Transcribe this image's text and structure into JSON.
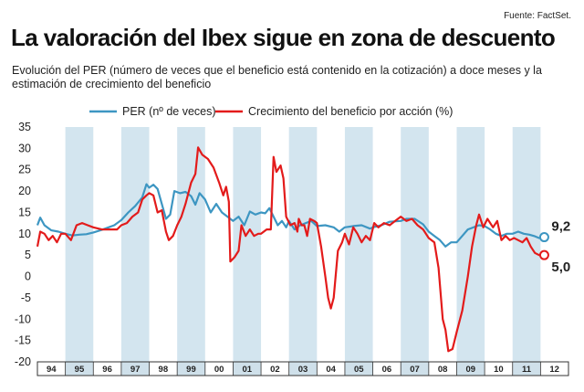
{
  "source": "Fuente: FactSet.",
  "title": "La valoración del Ibex sigue en zona de descuento",
  "subtitle": "Evolución del PER (número de veces que el beneficio está contenido en la cotización) a doce meses y la estimación de crecimiento del beneficio",
  "colors": {
    "per": "#3d96c2",
    "growth": "#e31b1b",
    "band": "#d3e5ef",
    "axis_band": "#cfe0ea"
  },
  "chart_data": {
    "type": "line",
    "title": "La valoración del Ibex sigue en zona de descuento",
    "ylim": [
      -20,
      35
    ],
    "yticks": [
      35,
      30,
      25,
      20,
      15,
      10,
      5,
      0,
      -5,
      -10,
      -15,
      -20
    ],
    "xlim": [
      1994,
      2013
    ],
    "categories": [
      "94",
      "95",
      "96",
      "97",
      "98",
      "99",
      "00",
      "01",
      "02",
      "03",
      "04",
      "05",
      "06",
      "07",
      "08",
      "09",
      "10",
      "11",
      "12"
    ],
    "grid": false,
    "legend": "top",
    "series": [
      {
        "name": "PER (nº de veces)",
        "color": "#3d96c2",
        "end_label": "9,2",
        "points": [
          [
            1994.0,
            12.0
          ],
          [
            1994.1,
            13.8
          ],
          [
            1994.25,
            12.0
          ],
          [
            1994.5,
            10.8
          ],
          [
            1994.75,
            10.5
          ],
          [
            1995.0,
            10.0
          ],
          [
            1995.25,
            9.6
          ],
          [
            1995.5,
            9.8
          ],
          [
            1995.75,
            9.9
          ],
          [
            1996.0,
            10.3
          ],
          [
            1996.25,
            10.8
          ],
          [
            1996.5,
            11.4
          ],
          [
            1996.75,
            12.0
          ],
          [
            1997.0,
            13.2
          ],
          [
            1997.25,
            15.0
          ],
          [
            1997.5,
            16.5
          ],
          [
            1997.75,
            18.5
          ],
          [
            1997.9,
            21.6
          ],
          [
            1998.0,
            20.8
          ],
          [
            1998.15,
            21.5
          ],
          [
            1998.3,
            20.5
          ],
          [
            1998.45,
            17.0
          ],
          [
            1998.6,
            13.5
          ],
          [
            1998.75,
            14.5
          ],
          [
            1998.9,
            20.0
          ],
          [
            1999.1,
            19.5
          ],
          [
            1999.3,
            19.8
          ],
          [
            1999.5,
            18.8
          ],
          [
            1999.65,
            16.8
          ],
          [
            1999.8,
            19.5
          ],
          [
            2000.0,
            18.0
          ],
          [
            2000.2,
            15.0
          ],
          [
            2000.4,
            17.0
          ],
          [
            2000.6,
            15.0
          ],
          [
            2000.8,
            14.0
          ],
          [
            2001.0,
            13.0
          ],
          [
            2001.2,
            14.0
          ],
          [
            2001.4,
            12.0
          ],
          [
            2001.6,
            15.2
          ],
          [
            2001.8,
            14.5
          ],
          [
            2002.0,
            15.0
          ],
          [
            2002.15,
            14.8
          ],
          [
            2002.3,
            16.0
          ],
          [
            2002.45,
            14.0
          ],
          [
            2002.6,
            12.0
          ],
          [
            2002.75,
            13.0
          ],
          [
            2002.9,
            11.5
          ],
          [
            2003.0,
            13.0
          ],
          [
            2003.2,
            11.0
          ],
          [
            2003.4,
            12.0
          ],
          [
            2003.6,
            12.5
          ],
          [
            2003.8,
            13.0
          ],
          [
            2004.0,
            11.8
          ],
          [
            2004.3,
            12.0
          ],
          [
            2004.6,
            11.5
          ],
          [
            2004.8,
            10.5
          ],
          [
            2005.0,
            11.5
          ],
          [
            2005.3,
            11.8
          ],
          [
            2005.6,
            12.0
          ],
          [
            2005.9,
            11.2
          ],
          [
            2006.0,
            11.5
          ],
          [
            2006.3,
            12.0
          ],
          [
            2006.6,
            12.8
          ],
          [
            2007.0,
            13.0
          ],
          [
            2007.2,
            13.5
          ],
          [
            2007.5,
            13.5
          ],
          [
            2007.8,
            12.2
          ],
          [
            2008.0,
            10.5
          ],
          [
            2008.2,
            9.5
          ],
          [
            2008.4,
            8.5
          ],
          [
            2008.6,
            7.0
          ],
          [
            2008.8,
            8.0
          ],
          [
            2009.0,
            8.0
          ],
          [
            2009.2,
            9.5
          ],
          [
            2009.4,
            11.0
          ],
          [
            2009.6,
            11.5
          ],
          [
            2009.8,
            12.0
          ],
          [
            2010.0,
            11.8
          ],
          [
            2010.2,
            11.0
          ],
          [
            2010.4,
            10.0
          ],
          [
            2010.6,
            9.5
          ],
          [
            2010.8,
            10.0
          ],
          [
            2011.0,
            10.0
          ],
          [
            2011.2,
            10.5
          ],
          [
            2011.4,
            10.0
          ],
          [
            2011.6,
            9.8
          ],
          [
            2011.8,
            9.4
          ],
          [
            2011.95,
            9.0
          ],
          [
            2012.1,
            9.2
          ]
        ]
      },
      {
        "name": "Crecimiento del beneficio por acción (%)",
        "color": "#e31b1b",
        "end_label": "5,0",
        "points": [
          [
            1994.0,
            7.0
          ],
          [
            1994.1,
            10.5
          ],
          [
            1994.25,
            10.0
          ],
          [
            1994.4,
            8.5
          ],
          [
            1994.55,
            9.5
          ],
          [
            1994.7,
            8.0
          ],
          [
            1994.85,
            10.0
          ],
          [
            1995.0,
            10.0
          ],
          [
            1995.2,
            8.5
          ],
          [
            1995.4,
            12.0
          ],
          [
            1995.6,
            12.5
          ],
          [
            1995.8,
            12.0
          ],
          [
            1996.0,
            11.5
          ],
          [
            1996.3,
            11.0
          ],
          [
            1996.6,
            11.0
          ],
          [
            1996.85,
            11.0
          ],
          [
            1997.0,
            12.0
          ],
          [
            1997.2,
            12.5
          ],
          [
            1997.4,
            14.0
          ],
          [
            1997.6,
            15.0
          ],
          [
            1997.75,
            18.0
          ],
          [
            1997.9,
            19.0
          ],
          [
            1998.0,
            19.5
          ],
          [
            1998.15,
            19.0
          ],
          [
            1998.3,
            15.0
          ],
          [
            1998.45,
            15.5
          ],
          [
            1998.6,
            10.5
          ],
          [
            1998.7,
            8.5
          ],
          [
            1998.85,
            9.5
          ],
          [
            1999.0,
            12.0
          ],
          [
            1999.15,
            14.0
          ],
          [
            1999.3,
            17.0
          ],
          [
            1999.5,
            22.0
          ],
          [
            1999.65,
            24.0
          ],
          [
            1999.75,
            30.2
          ],
          [
            1999.9,
            28.5
          ],
          [
            2000.1,
            27.5
          ],
          [
            2000.3,
            25.5
          ],
          [
            2000.5,
            22.0
          ],
          [
            2000.65,
            19.0
          ],
          [
            2000.75,
            21.0
          ],
          [
            2000.85,
            17.5
          ],
          [
            2000.9,
            3.5
          ],
          [
            2001.05,
            4.5
          ],
          [
            2001.2,
            6.0
          ],
          [
            2001.3,
            12.0
          ],
          [
            2001.45,
            9.5
          ],
          [
            2001.6,
            11.0
          ],
          [
            2001.75,
            9.5
          ],
          [
            2001.9,
            10.0
          ],
          [
            2002.0,
            10.0
          ],
          [
            2002.2,
            11.0
          ],
          [
            2002.35,
            11.0
          ],
          [
            2002.45,
            28.0
          ],
          [
            2002.55,
            24.5
          ],
          [
            2002.7,
            26.0
          ],
          [
            2002.8,
            23.0
          ],
          [
            2002.9,
            14.0
          ],
          [
            2003.05,
            12.0
          ],
          [
            2003.2,
            12.5
          ],
          [
            2003.3,
            10.5
          ],
          [
            2003.35,
            13.5
          ],
          [
            2003.45,
            12.0
          ],
          [
            2003.55,
            12.0
          ],
          [
            2003.65,
            9.5
          ],
          [
            2003.75,
            13.5
          ],
          [
            2003.9,
            13.0
          ],
          [
            2004.0,
            12.5
          ],
          [
            2004.15,
            7.0
          ],
          [
            2004.3,
            0.0
          ],
          [
            2004.4,
            -5.0
          ],
          [
            2004.5,
            -7.5
          ],
          [
            2004.6,
            -5.0
          ],
          [
            2004.75,
            6.0
          ],
          [
            2004.9,
            8.0
          ],
          [
            2005.0,
            10.0
          ],
          [
            2005.15,
            7.5
          ],
          [
            2005.3,
            11.5
          ],
          [
            2005.45,
            10.0
          ],
          [
            2005.6,
            8.0
          ],
          [
            2005.75,
            9.5
          ],
          [
            2005.9,
            8.5
          ],
          [
            2006.05,
            12.5
          ],
          [
            2006.2,
            11.5
          ],
          [
            2006.4,
            12.5
          ],
          [
            2006.6,
            12.0
          ],
          [
            2006.8,
            13.0
          ],
          [
            2007.0,
            14.0
          ],
          [
            2007.2,
            13.0
          ],
          [
            2007.4,
            13.5
          ],
          [
            2007.6,
            12.0
          ],
          [
            2007.8,
            11.0
          ],
          [
            2008.0,
            9.0
          ],
          [
            2008.2,
            8.0
          ],
          [
            2008.35,
            2.0
          ],
          [
            2008.5,
            -10.0
          ],
          [
            2008.6,
            -12.5
          ],
          [
            2008.7,
            -17.5
          ],
          [
            2008.85,
            -17.0
          ],
          [
            2009.0,
            -13.0
          ],
          [
            2009.2,
            -8.0
          ],
          [
            2009.4,
            0.0
          ],
          [
            2009.55,
            7.0
          ],
          [
            2009.7,
            12.0
          ],
          [
            2009.8,
            14.5
          ],
          [
            2009.95,
            11.5
          ],
          [
            2010.1,
            13.5
          ],
          [
            2010.3,
            11.5
          ],
          [
            2010.45,
            13.0
          ],
          [
            2010.6,
            8.5
          ],
          [
            2010.75,
            9.5
          ],
          [
            2010.9,
            8.5
          ],
          [
            2011.05,
            9.0
          ],
          [
            2011.2,
            8.5
          ],
          [
            2011.35,
            8.0
          ],
          [
            2011.5,
            9.0
          ],
          [
            2011.65,
            7.0
          ],
          [
            2011.8,
            5.5
          ],
          [
            2011.95,
            5.0
          ],
          [
            2012.1,
            5.0
          ]
        ]
      }
    ]
  }
}
